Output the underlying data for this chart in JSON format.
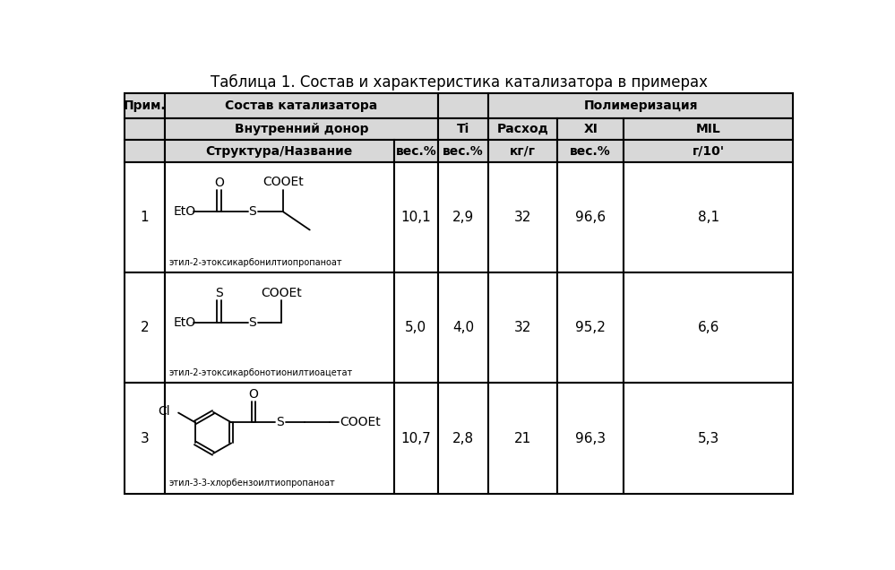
{
  "title": "Таблица 1. Состав и характеристика катализатора в примерах",
  "title_fontsize": 12,
  "rows": [
    {
      "num": "1",
      "wt": "10,1",
      "ti": "2,9",
      "rashod": "32",
      "xi": "96,6",
      "mil": "8,1",
      "name": "этил-2-этоксикарбонилтиопропаноат"
    },
    {
      "num": "2",
      "wt": "5,0",
      "ti": "4,0",
      "rashod": "32",
      "xi": "95,2",
      "mil": "6,6",
      "name": "этил-2-этоксикарбонотионилтиоацетат"
    },
    {
      "num": "3",
      "wt": "10,7",
      "ti": "2,8",
      "rashod": "21",
      "xi": "96,3",
      "mil": "5,3",
      "name": "этил-3-3-хлорбензоилтиопропаноат"
    }
  ],
  "bg_color": "#ffffff",
  "line_color": "#000000",
  "header_bg": "#d8d8d8",
  "text_color": "#000000"
}
